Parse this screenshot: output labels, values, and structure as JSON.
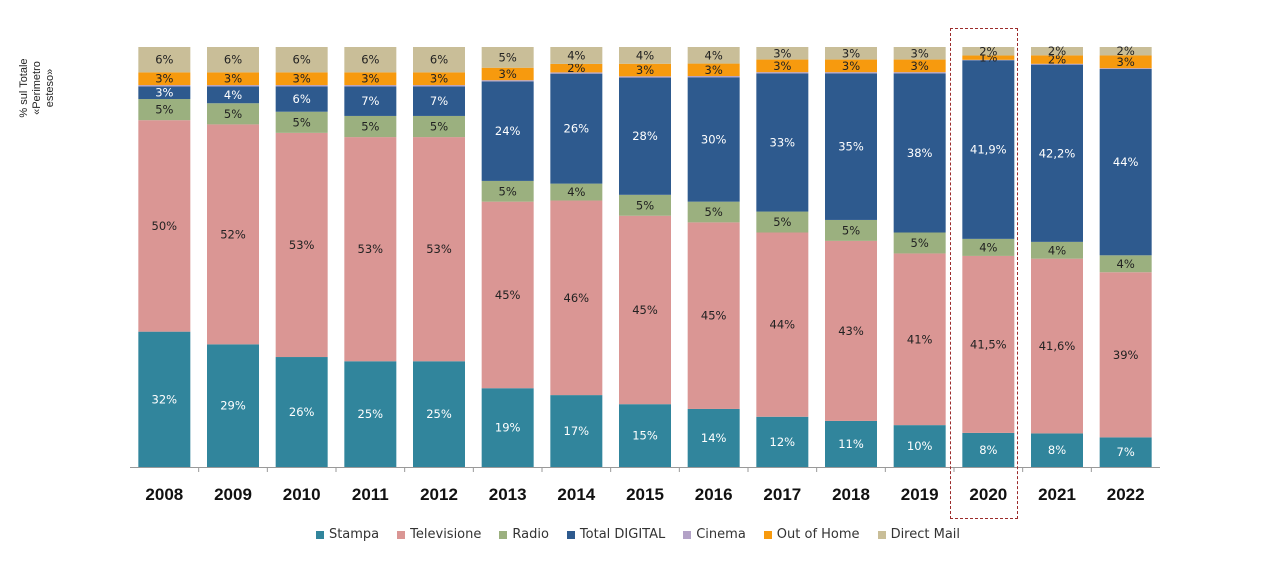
{
  "chart_data": {
    "type": "bar",
    "stacked": true,
    "categories": [
      "2008",
      "2009",
      "2010",
      "2011",
      "2012",
      "2013",
      "2014",
      "2015",
      "2016",
      "2017",
      "2018",
      "2019",
      "2020",
      "2021",
      "2022"
    ],
    "ylabel_lines": [
      "% sul Totale",
      "«Perimetro esteso»"
    ],
    "highlight_category": "2020",
    "legend_placement": "bottom",
    "series": [
      {
        "name": "Stampa",
        "color": "#31859C",
        "values": [
          32,
          29,
          26,
          25,
          25,
          19,
          17,
          15,
          14,
          12,
          11,
          10,
          8,
          8,
          7
        ],
        "labels": [
          "32%",
          "29%",
          "26%",
          "25%",
          "25%",
          "19%",
          "17%",
          "15%",
          "14%",
          "12%",
          "11%",
          "10%",
          "8%",
          "8%",
          "7%"
        ],
        "label_color": "#ffffff"
      },
      {
        "name": "Televisione",
        "color": "#DA9694",
        "values": [
          50,
          52,
          53,
          53,
          53,
          45,
          46,
          45,
          45,
          44,
          43,
          41,
          41.5,
          41.6,
          39
        ],
        "labels": [
          "50%",
          "52%",
          "53%",
          "53%",
          "53%",
          "45%",
          "46%",
          "45%",
          "45%",
          "44%",
          "43%",
          "41%",
          "41,5%",
          "41,6%",
          "39%"
        ],
        "label_color": "#222222"
      },
      {
        "name": "Radio",
        "color": "#9BB07F",
        "values": [
          5,
          5,
          5,
          5,
          5,
          5,
          4,
          5,
          5,
          5,
          5,
          5,
          4,
          4,
          4
        ],
        "labels": [
          "5%",
          "5%",
          "5%",
          "5%",
          "5%",
          "5%",
          "4%",
          "5%",
          "5%",
          "5%",
          "5%",
          "5%",
          "4%",
          "4%",
          "4%"
        ],
        "label_color": "#222222"
      },
      {
        "name": "Total DIGITAL",
        "color": "#2E5A8E",
        "values": [
          3,
          4,
          6,
          7,
          7,
          24,
          26,
          28,
          30,
          33,
          35,
          38,
          41.9,
          42.2,
          44
        ],
        "labels": [
          "3%",
          "4%",
          "6%",
          "7%",
          "7%",
          "24%",
          "26%",
          "28%",
          "30%",
          "33%",
          "35%",
          "38%",
          "41,9%",
          "42,2%",
          "44%"
        ],
        "label_color": "#ffffff"
      },
      {
        "name": "Cinema",
        "color": "#B3A2C7",
        "values": [
          0.3,
          0.3,
          0.3,
          0.3,
          0.3,
          0.3,
          0.3,
          0.3,
          0.3,
          0.3,
          0.3,
          0.3,
          0.1,
          0.2,
          0.2
        ],
        "labels": [
          "",
          "",
          "",
          "",
          "",
          "",
          "",
          "",
          "",
          "",
          "",
          "",
          "",
          "",
          ""
        ],
        "label_color": "#222222"
      },
      {
        "name": "Out of Home",
        "color": "#F79A0E",
        "values": [
          3,
          3,
          3,
          3,
          3,
          3,
          2,
          3,
          3,
          3,
          3,
          3,
          1,
          2,
          3
        ],
        "labels": [
          "3%",
          "3%",
          "3%",
          "3%",
          "3%",
          "3%",
          "2%",
          "3%",
          "3%",
          "3%",
          "3%",
          "3%",
          "1%",
          "2%",
          "3%"
        ],
        "label_color": "#222222"
      },
      {
        "name": "Direct Mail",
        "color": "#C9BE98",
        "values": [
          6,
          6,
          6,
          6,
          6,
          5,
          4,
          4,
          4,
          3,
          3,
          3,
          2,
          2,
          2
        ],
        "labels": [
          "6%",
          "6%",
          "6%",
          "6%",
          "6%",
          "5%",
          "4%",
          "4%",
          "4%",
          "3%",
          "3%",
          "3%",
          "2%",
          "2%",
          "2%"
        ],
        "label_color": "#222222"
      }
    ]
  }
}
